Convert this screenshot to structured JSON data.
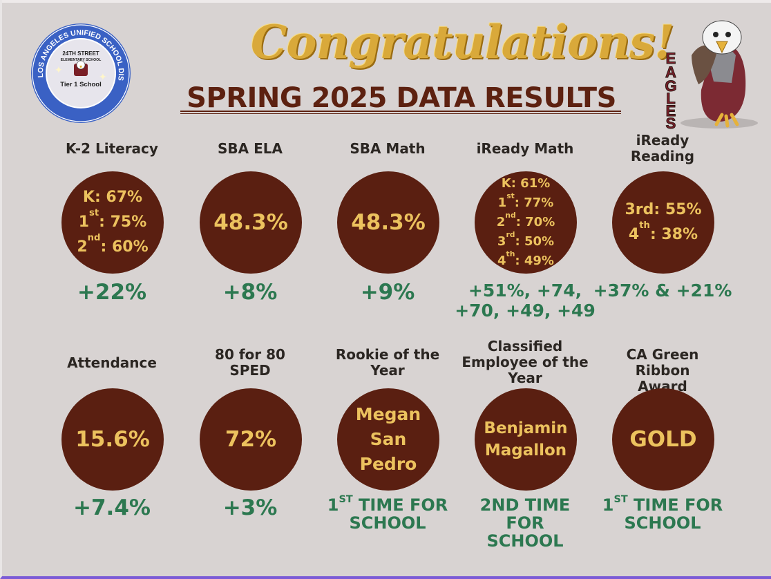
{
  "header": {
    "congrats": "Congratulations!",
    "subtitle": "SPRING 2025 DATA RESULTS"
  },
  "seal": {
    "ring_text": "LOS ANGELES UNIFIED SCHOOL DISTRICT",
    "school_line1": "24TH STREET",
    "school_line2": "ELEMENTARY SCHOOL",
    "tier": "Tier 1 School"
  },
  "mascot": {
    "letters": [
      "E",
      "A",
      "G",
      "L",
      "E",
      "S"
    ],
    "icon": "eagle-mascot-icon"
  },
  "metrics_row1": [
    {
      "label_lines": [
        "K-2 Literacy"
      ],
      "circle_lines": [
        [
          "K: 67%"
        ],
        [
          "1",
          "st",
          ": 75%"
        ],
        [
          "2",
          "nd",
          ": 60%"
        ]
      ],
      "change_lines": [
        "+22%"
      ]
    },
    {
      "label_lines": [
        "SBA ELA"
      ],
      "circle_lines": [
        [
          "48.3%"
        ]
      ],
      "change_lines": [
        "+8%"
      ]
    },
    {
      "label_lines": [
        "SBA Math"
      ],
      "circle_lines": [
        [
          "48.3%"
        ]
      ],
      "change_lines": [
        "+9%"
      ]
    },
    {
      "label_lines": [
        "iReady Math"
      ],
      "circle_lines": [
        [
          "K: 61%"
        ],
        [
          "1",
          "st",
          ": 77%"
        ],
        [
          "2",
          "nd",
          ": 70%"
        ],
        [
          "3",
          "rd",
          ": 50%"
        ],
        [
          "4",
          "th",
          ": 49%"
        ]
      ],
      "change_lines": [
        "+51%, +74,",
        "+70, +49, +49"
      ]
    },
    {
      "label_lines": [
        "iReady",
        "Reading"
      ],
      "circle_lines": [
        [
          "3rd: 55%"
        ],
        [
          "4",
          "th",
          ": 38%"
        ]
      ],
      "change_lines": [
        "+37% &  +21%"
      ]
    }
  ],
  "metrics_row2": [
    {
      "label_lines": [
        "Attendance"
      ],
      "circle_lines": [
        [
          "15.6%"
        ]
      ],
      "change_lines": [
        "+7.4%"
      ]
    },
    {
      "label_lines": [
        "80 for 80",
        "SPED"
      ],
      "circle_lines": [
        [
          "72%"
        ]
      ],
      "change_lines": [
        "+3%"
      ]
    },
    {
      "label_lines": [
        "Rookie of the",
        "Year"
      ],
      "circle_lines": [
        [
          "Megan"
        ],
        [
          "San"
        ],
        [
          "Pedro"
        ]
      ],
      "change_lines": [
        [
          "1",
          "ST",
          " TIME FOR"
        ],
        [
          "SCHOOL"
        ]
      ]
    },
    {
      "label_lines": [
        "Classified",
        "Employee of the",
        "Year"
      ],
      "circle_lines": [
        [
          "Benjamin"
        ],
        [
          "Magallon"
        ]
      ],
      "change_lines": [
        [
          "2ND TIME"
        ],
        [
          "FOR"
        ],
        [
          "SCHOOL"
        ]
      ]
    },
    {
      "label_lines": [
        "CA Green Ribbon",
        "Award"
      ],
      "circle_lines": [
        [
          "GOLD"
        ]
      ],
      "change_lines": [
        [
          "1",
          "ST",
          " TIME FOR"
        ],
        [
          "SCHOOL"
        ]
      ]
    }
  ]
}
